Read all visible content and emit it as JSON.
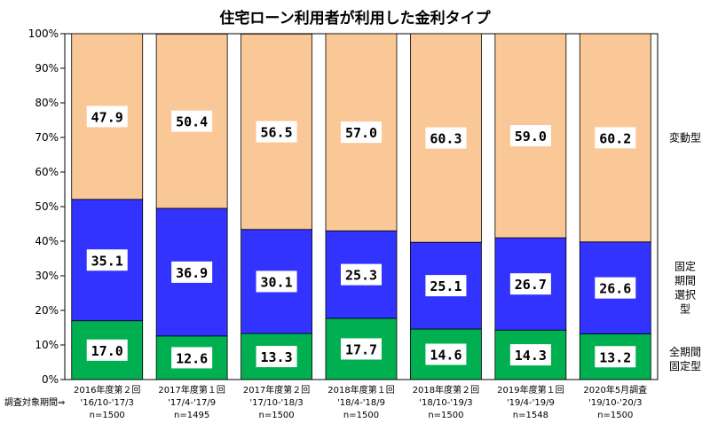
{
  "chart_data": {
    "type": "bar",
    "stacked": true,
    "percent": true,
    "title": "住宅ローン利用者が利用した金利タイプ",
    "survey_period_label": "調査対象期間⇒",
    "categories": [
      {
        "name": "2016年度第２回",
        "period": "'16/10-'17/3",
        "n": "n=1500"
      },
      {
        "name": "2017年度第１回",
        "period": "'17/4-'17/9",
        "n": "n=1495"
      },
      {
        "name": "2017年度第２回",
        "period": "'17/10-'18/3",
        "n": "n=1500"
      },
      {
        "name": "2018年度第１回",
        "period": "'18/4-'18/9",
        "n": "n=1500"
      },
      {
        "name": "2018年度第２回",
        "period": "'18/10-'19/3",
        "n": "n=1500"
      },
      {
        "name": "2019年度第１回",
        "period": "'19/4-'19/9",
        "n": "n=1548"
      },
      {
        "name": "2020年5月調査",
        "period": "'19/10-'20/3",
        "n": "n=1500"
      }
    ],
    "series": [
      {
        "name": "全期間固定型",
        "legend_lines": [
          "全期間",
          "固定型"
        ],
        "color": "#00b050",
        "values": [
          17.0,
          12.6,
          13.3,
          17.7,
          14.6,
          14.3,
          13.2
        ],
        "labels": [
          "17.0",
          "12.6",
          "13.3",
          "17.7",
          "14.6",
          "14.3",
          "13.2"
        ]
      },
      {
        "name": "固定期間選択型",
        "legend_lines": [
          "固定",
          "期間",
          "選択",
          "型"
        ],
        "color": "#3333ff",
        "values": [
          35.1,
          36.9,
          30.1,
          25.3,
          25.1,
          26.7,
          26.6
        ],
        "labels": [
          "35.1",
          "36.9",
          "30.1",
          "25.3",
          "25.1",
          "26.7",
          "26.6"
        ]
      },
      {
        "name": "変動型",
        "legend_lines": [
          "変動型"
        ],
        "color": "#fac896",
        "values": [
          47.9,
          50.4,
          56.5,
          57.0,
          60.3,
          59.0,
          60.2
        ],
        "labels": [
          "47.9",
          "50.4",
          "56.5",
          "57.0",
          "60.3",
          "59.0",
          "60.2"
        ]
      }
    ],
    "ylim": [
      0,
      100
    ],
    "yticks": [
      "0%",
      "10%",
      "20%",
      "30%",
      "40%",
      "50%",
      "60%",
      "70%",
      "80%",
      "90%",
      "100%"
    ],
    "grid": false,
    "legend_placement": "right"
  }
}
